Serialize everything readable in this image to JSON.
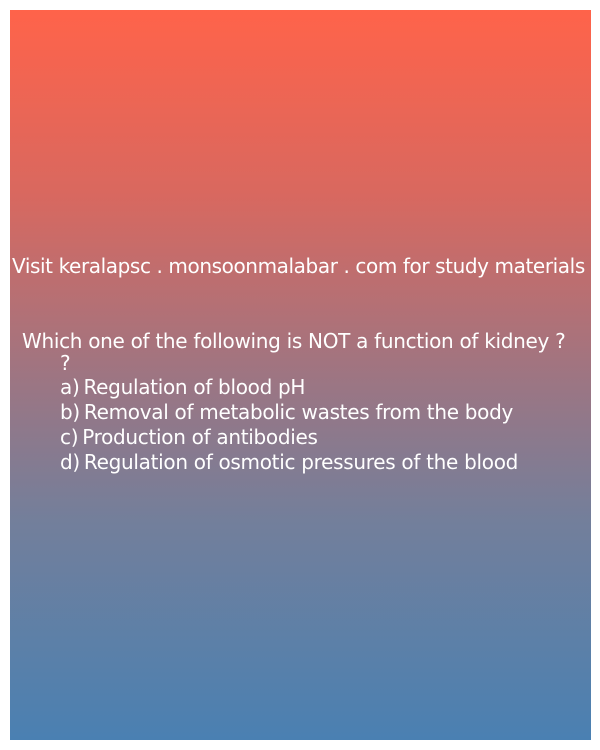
{
  "visit_text": "Visit keralapsc . monsoonmalabar . com for study materials",
  "question": {
    "text": "Which one of the following is NOT a function of kidney ?",
    "extra_mark": "?"
  },
  "options": [
    {
      "letter": "a)",
      "text": "Regulation of blood pH"
    },
    {
      "letter": "b)",
      "text": "Removal of metabolic wastes from the body"
    },
    {
      "letter": "c)",
      "text": "Production of antibodies"
    },
    {
      "letter": "d)",
      "text": "Regulation of osmotic pressures of the blood"
    }
  ]
}
